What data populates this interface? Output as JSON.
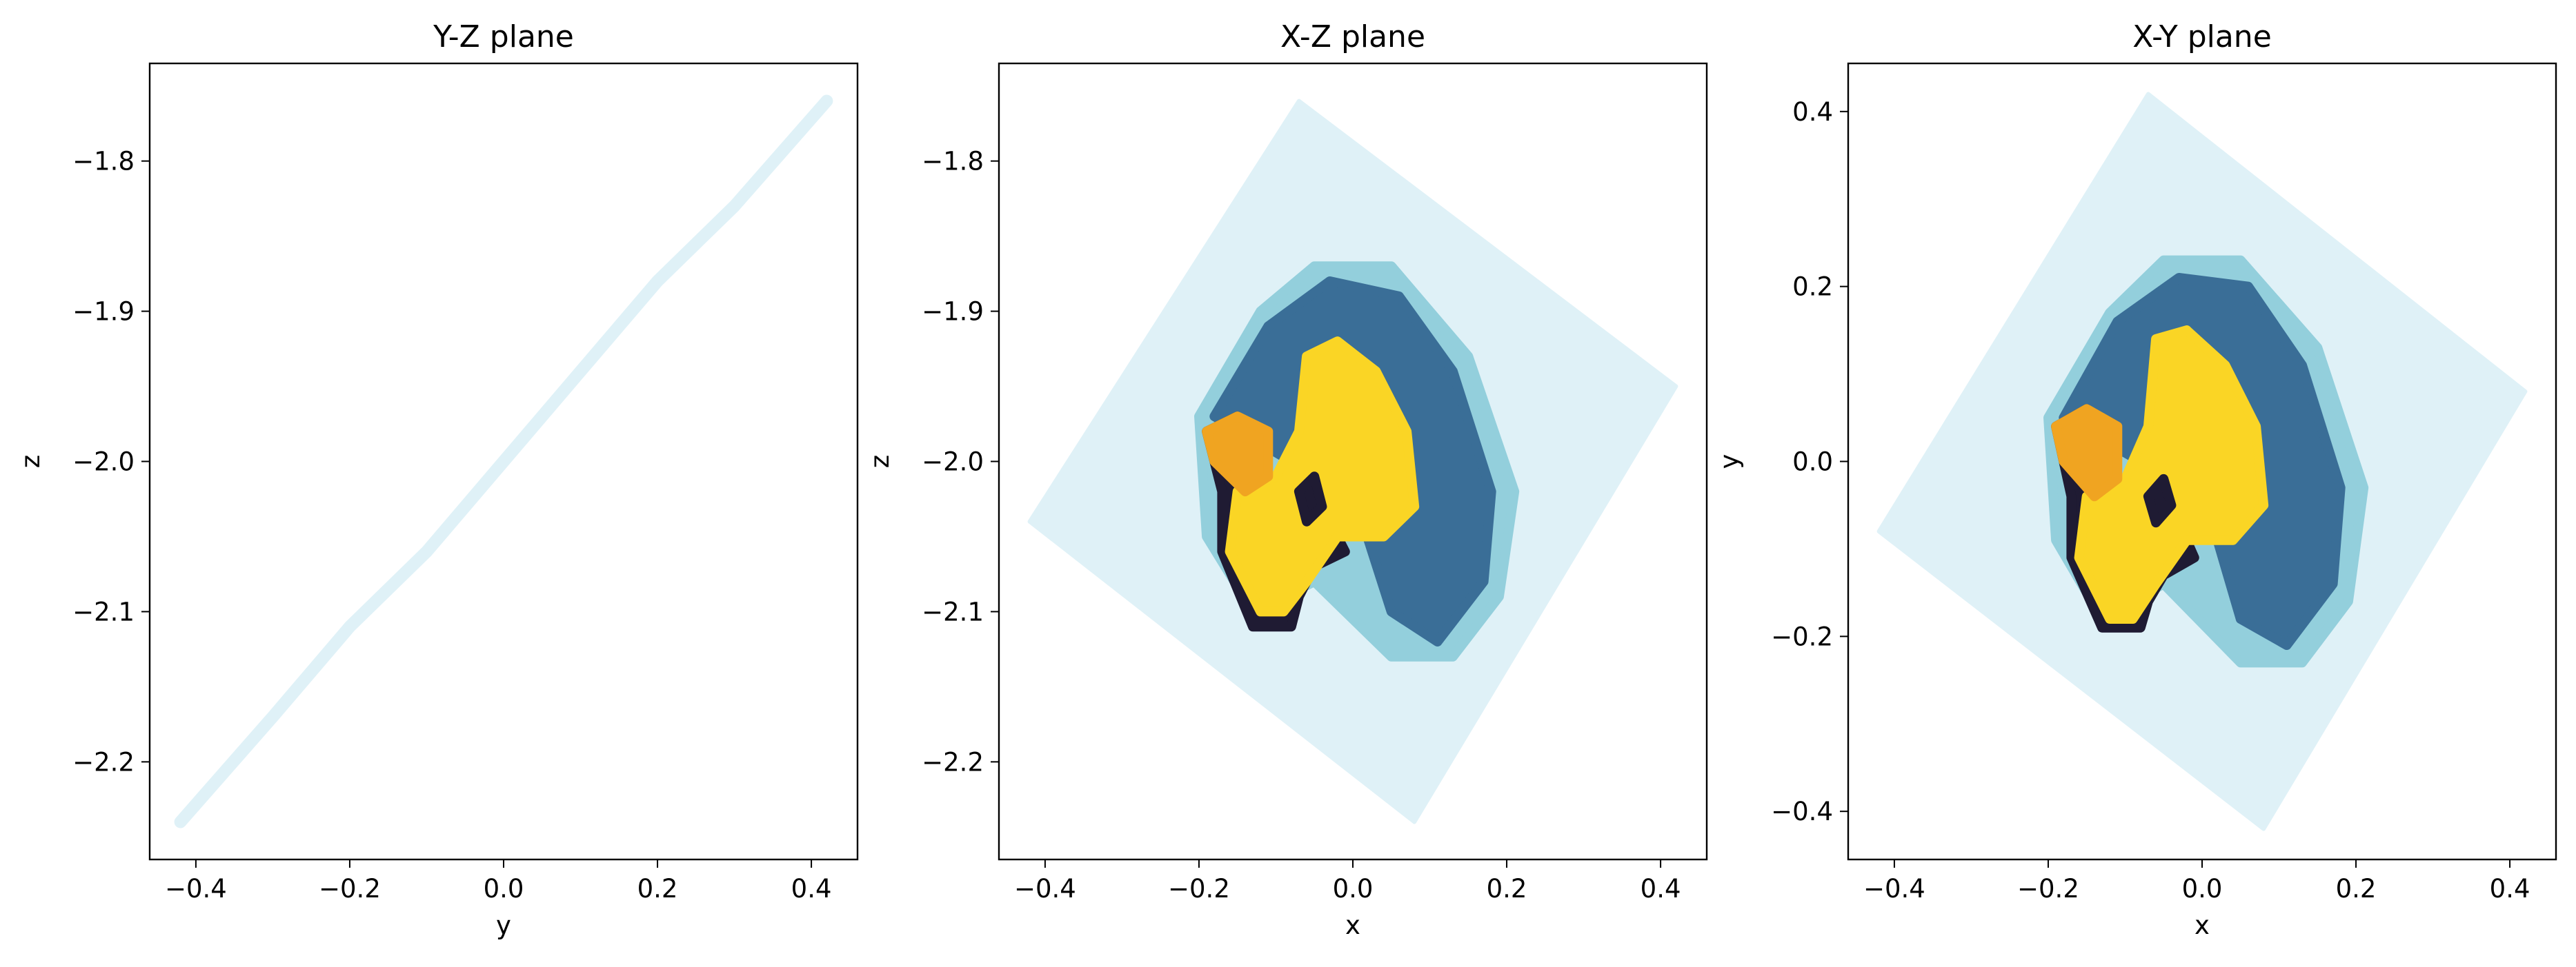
{
  "colors": {
    "light": "#dff1f7",
    "mid_light": "#93cfdc",
    "mid_dark": "#3a6e97",
    "dark": "#1f1b33",
    "yellow": "#fad525",
    "orange": "#f0a421"
  },
  "chart_data": [
    {
      "type": "scatter",
      "title": "Y-Z plane",
      "xlabel": "y",
      "ylabel": "z",
      "xlim": [
        -0.46,
        0.46
      ],
      "ylim": [
        -2.265,
        -1.735
      ],
      "xticks": [
        -0.4,
        -0.2,
        0.0,
        0.2,
        0.4
      ],
      "xtick_labels": [
        "−0.4",
        "−0.2",
        "0.0",
        "0.2",
        "0.4"
      ],
      "yticks": [
        -1.8,
        -1.9,
        -2.0,
        -2.1,
        -2.2
      ],
      "ytick_labels": [
        "−1.8",
        "−1.9",
        "−2.0",
        "−2.1",
        "−2.2"
      ],
      "grid": false,
      "series": [
        {
          "color": "light",
          "points": [
            [
              -0.42,
              -2.24
            ],
            [
              -0.3,
              -2.17
            ],
            [
              -0.2,
              -2.11
            ],
            [
              -0.1,
              -2.06
            ],
            [
              0.0,
              -2.0
            ],
            [
              0.1,
              -1.94
            ],
            [
              0.2,
              -1.88
            ],
            [
              0.3,
              -1.83
            ],
            [
              0.42,
              -1.76
            ]
          ]
        }
      ]
    },
    {
      "type": "scatter",
      "title": "X-Z plane",
      "xlabel": "x",
      "ylabel": "z",
      "xlim": [
        -0.46,
        0.46
      ],
      "ylim": [
        -2.265,
        -1.735
      ],
      "xticks": [
        -0.4,
        -0.2,
        0.0,
        0.2,
        0.4
      ],
      "xtick_labels": [
        "−0.4",
        "−0.2",
        "0.0",
        "0.2",
        "0.4"
      ],
      "yticks": [
        -1.8,
        -1.9,
        -2.0,
        -2.1,
        -2.2
      ],
      "ytick_labels": [
        "−1.8",
        "−1.9",
        "−2.0",
        "−2.1",
        "−2.2"
      ],
      "grid": false,
      "regions": [
        {
          "color": "light",
          "points": [
            [
              -0.42,
              -2.04
            ],
            [
              -0.07,
              -1.76
            ],
            [
              0.42,
              -1.95
            ],
            [
              0.08,
              -2.24
            ]
          ]
        },
        {
          "color": "mid_light",
          "points": [
            [
              -0.2,
              -1.97
            ],
            [
              -0.12,
              -1.9
            ],
            [
              -0.05,
              -1.87
            ],
            [
              0.05,
              -1.87
            ],
            [
              0.15,
              -1.93
            ],
            [
              0.21,
              -2.02
            ],
            [
              0.19,
              -2.09
            ],
            [
              0.13,
              -2.13
            ],
            [
              0.05,
              -2.13
            ],
            [
              -0.05,
              -2.08
            ],
            [
              -0.13,
              -2.1
            ],
            [
              -0.19,
              -2.05
            ]
          ]
        },
        {
          "color": "mid_dark",
          "points": [
            [
              -0.18,
              -1.97
            ],
            [
              -0.11,
              -1.91
            ],
            [
              -0.03,
              -1.88
            ],
            [
              0.06,
              -1.89
            ],
            [
              0.13,
              -1.94
            ],
            [
              0.18,
              -2.02
            ],
            [
              0.17,
              -2.08
            ],
            [
              0.11,
              -2.12
            ],
            [
              0.05,
              -2.1
            ],
            [
              0.0,
              -2.02
            ],
            [
              -0.08,
              -2.0
            ]
          ]
        },
        {
          "color": "dark",
          "points": [
            [
              -0.19,
              -1.98
            ],
            [
              -0.15,
              -1.97
            ],
            [
              -0.1,
              -2.02
            ],
            [
              -0.04,
              -2.03
            ],
            [
              -0.01,
              -2.06
            ],
            [
              -0.05,
              -2.07
            ],
            [
              -0.07,
              -2.09
            ],
            [
              -0.08,
              -2.11
            ],
            [
              -0.13,
              -2.11
            ],
            [
              -0.17,
              -2.06
            ],
            [
              -0.17,
              -2.02
            ]
          ]
        },
        {
          "color": "yellow",
          "points": [
            [
              -0.06,
              -1.93
            ],
            [
              -0.02,
              -1.92
            ],
            [
              0.03,
              -1.94
            ],
            [
              0.07,
              -1.98
            ],
            [
              0.08,
              -2.03
            ],
            [
              0.04,
              -2.05
            ],
            [
              -0.02,
              -2.05
            ],
            [
              -0.06,
              -2.08
            ],
            [
              -0.09,
              -2.1
            ],
            [
              -0.12,
              -2.1
            ],
            [
              -0.16,
              -2.06
            ],
            [
              -0.15,
              -2.02
            ],
            [
              -0.1,
              -2.01
            ],
            [
              -0.07,
              -1.98
            ]
          ]
        },
        {
          "color": "orange",
          "points": [
            [
              -0.19,
              -1.98
            ],
            [
              -0.15,
              -1.97
            ],
            [
              -0.11,
              -1.98
            ],
            [
              -0.11,
              -2.01
            ],
            [
              -0.14,
              -2.02
            ],
            [
              -0.18,
              -2.0
            ]
          ]
        },
        {
          "color": "dark",
          "points": [
            [
              -0.07,
              -2.02
            ],
            [
              -0.05,
              -2.01
            ],
            [
              -0.04,
              -2.03
            ],
            [
              -0.06,
              -2.04
            ]
          ]
        }
      ]
    },
    {
      "type": "scatter",
      "title": "X-Y plane",
      "xlabel": "x",
      "ylabel": "y",
      "xlim": [
        -0.46,
        0.46
      ],
      "ylim": [
        -0.455,
        0.455
      ],
      "xticks": [
        -0.4,
        -0.2,
        0.0,
        0.2,
        0.4
      ],
      "xtick_labels": [
        "−0.4",
        "−0.2",
        "0.0",
        "0.2",
        "0.4"
      ],
      "yticks": [
        0.4,
        0.2,
        0.0,
        -0.2,
        -0.4
      ],
      "ytick_labels": [
        "0.4",
        "0.2",
        "0.0",
        "−0.2",
        "−0.4"
      ],
      "grid": false,
      "regions": [
        {
          "color": "light",
          "points": [
            [
              -0.42,
              -0.08
            ],
            [
              -0.07,
              0.42
            ],
            [
              0.42,
              0.08
            ],
            [
              0.08,
              -0.42
            ]
          ]
        },
        {
          "color": "mid_light",
          "points": [
            [
              -0.2,
              0.05
            ],
            [
              -0.12,
              0.17
            ],
            [
              -0.05,
              0.23
            ],
            [
              0.05,
              0.23
            ],
            [
              0.15,
              0.13
            ],
            [
              0.21,
              -0.03
            ],
            [
              0.19,
              -0.16
            ],
            [
              0.13,
              -0.23
            ],
            [
              0.05,
              -0.23
            ],
            [
              -0.05,
              -0.14
            ],
            [
              -0.13,
              -0.18
            ],
            [
              -0.19,
              -0.09
            ]
          ]
        },
        {
          "color": "mid_dark",
          "points": [
            [
              -0.18,
              0.05
            ],
            [
              -0.11,
              0.16
            ],
            [
              -0.03,
              0.21
            ],
            [
              0.06,
              0.2
            ],
            [
              0.13,
              0.11
            ],
            [
              0.18,
              -0.03
            ],
            [
              0.17,
              -0.14
            ],
            [
              0.11,
              -0.21
            ],
            [
              0.05,
              -0.18
            ],
            [
              0.0,
              -0.03
            ],
            [
              -0.08,
              0.0
            ]
          ]
        },
        {
          "color": "dark",
          "points": [
            [
              -0.19,
              0.04
            ],
            [
              -0.15,
              0.06
            ],
            [
              -0.1,
              -0.04
            ],
            [
              -0.04,
              -0.05
            ],
            [
              -0.01,
              -0.11
            ],
            [
              -0.05,
              -0.13
            ],
            [
              -0.07,
              -0.16
            ],
            [
              -0.08,
              -0.19
            ],
            [
              -0.13,
              -0.19
            ],
            [
              -0.17,
              -0.11
            ],
            [
              -0.17,
              -0.04
            ]
          ]
        },
        {
          "color": "yellow",
          "points": [
            [
              -0.06,
              0.14
            ],
            [
              -0.02,
              0.15
            ],
            [
              0.03,
              0.11
            ],
            [
              0.07,
              0.04
            ],
            [
              0.08,
              -0.05
            ],
            [
              0.04,
              -0.09
            ],
            [
              -0.02,
              -0.09
            ],
            [
              -0.06,
              -0.14
            ],
            [
              -0.09,
              -0.18
            ],
            [
              -0.12,
              -0.18
            ],
            [
              -0.16,
              -0.11
            ],
            [
              -0.15,
              -0.04
            ],
            [
              -0.1,
              -0.02
            ],
            [
              -0.07,
              0.04
            ]
          ]
        },
        {
          "color": "orange",
          "points": [
            [
              -0.19,
              0.04
            ],
            [
              -0.15,
              0.06
            ],
            [
              -0.11,
              0.04
            ],
            [
              -0.11,
              -0.02
            ],
            [
              -0.14,
              -0.04
            ],
            [
              -0.18,
              0.0
            ]
          ]
        },
        {
          "color": "dark",
          "points": [
            [
              -0.07,
              -0.04
            ],
            [
              -0.05,
              -0.02
            ],
            [
              -0.04,
              -0.05
            ],
            [
              -0.06,
              -0.07
            ]
          ]
        }
      ]
    }
  ]
}
